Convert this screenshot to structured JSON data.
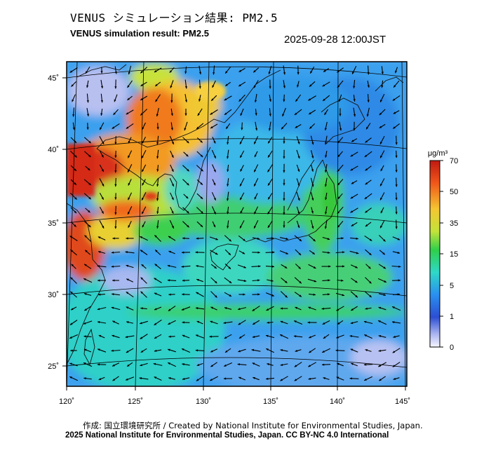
{
  "header": {
    "title_ja": "VENUS シミュレーション結果: PM2.5",
    "title_en": "VENUS simulation result: PM2.5",
    "timestamp": "2025-09-28 12:00JST"
  },
  "map": {
    "lon_labels": [
      "120˚",
      "125˚",
      "130˚",
      "135˚",
      "140˚",
      "145˚"
    ],
    "lat_labels": [
      "45˚",
      "40˚",
      "35˚",
      "30˚",
      "25˚"
    ]
  },
  "colorbar": {
    "unit": "μg/m³",
    "tick_labels": [
      "70",
      "50",
      "35",
      "15",
      "5",
      "1",
      "0"
    ],
    "colors": [
      "#d9351e",
      "#f06a1a",
      "#f4b62e",
      "#c9e23a",
      "#3ccc3c",
      "#2fd6c4",
      "#2b8fe6",
      "#2d4fd0",
      "#a8b2ee",
      "#f2f2ff"
    ]
  },
  "footer": {
    "credit_line": "作成: 国立環境研究所 / Created by National Institute for Environmental Studies, Japan.",
    "license_line": "2025 National Institute for Environmental Studies, Japan. CC BY-NC 4.0 International"
  }
}
